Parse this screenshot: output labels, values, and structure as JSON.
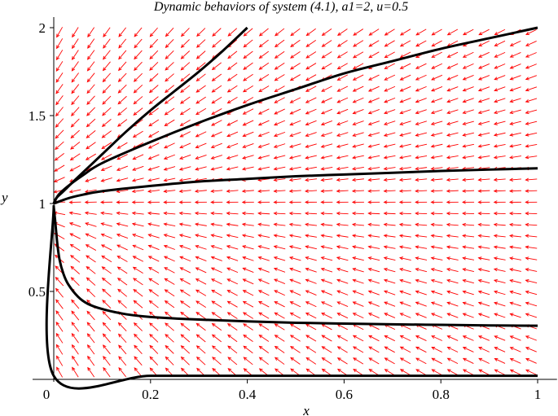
{
  "chart_data": {
    "type": "line",
    "title": "Dynamic behaviors of system (4.1), a1=2, u=0.5",
    "xlabel": "x",
    "ylabel": "y",
    "xlim": [
      0,
      1.04
    ],
    "ylim": [
      0,
      2.06
    ],
    "x_ticks": [
      {
        "value": 0.2,
        "label": "0.2"
      },
      {
        "value": 0.4,
        "label": "0.4"
      },
      {
        "value": 0.6,
        "label": "0.6"
      },
      {
        "value": 0.8,
        "label": "0.8"
      },
      {
        "value": 1,
        "label": "1"
      }
    ],
    "y_ticks": [
      {
        "value": 0.5,
        "label": "0.5"
      },
      {
        "value": 1,
        "label": "1"
      },
      {
        "value": 1.5,
        "label": "1.5"
      },
      {
        "value": 2,
        "label": "2"
      }
    ],
    "origin_label": "0",
    "grid": false,
    "colors": {
      "trajectory": "#000000",
      "field_arrows": "#ff0000"
    },
    "direction_field": {
      "x_start": 0.012,
      "x_step": 0.0325,
      "x_count": 31,
      "y_start": 0.04,
      "y_step": 0.0645,
      "y_count": 31
    },
    "series": [
      {
        "x": [
          0,
          0.005,
          0.02,
          0.05,
          0.1,
          0.15,
          0.2,
          0.25,
          0.3,
          0.35,
          0.4
        ],
        "y": [
          1.0,
          1.03,
          1.07,
          1.15,
          1.28,
          1.41,
          1.53,
          1.64,
          1.75,
          1.87,
          2.0
        ]
      },
      {
        "x": [
          0,
          0.01,
          0.03,
          0.06,
          0.1,
          0.2,
          0.3,
          0.4,
          0.5,
          0.6,
          0.7,
          0.8,
          0.9,
          1.0
        ],
        "y": [
          1.0,
          1.05,
          1.1,
          1.16,
          1.23,
          1.35,
          1.46,
          1.56,
          1.65,
          1.74,
          1.81,
          1.88,
          1.94,
          2.0
        ]
      },
      {
        "x": [
          0,
          0.03,
          0.06,
          0.1,
          0.2,
          0.3,
          0.4,
          0.5,
          0.6,
          0.7,
          0.8,
          0.9,
          1.0
        ],
        "y": [
          1.0,
          1.03,
          1.05,
          1.07,
          1.1,
          1.125,
          1.14,
          1.155,
          1.165,
          1.175,
          1.185,
          1.193,
          1.2
        ]
      },
      {
        "x": [
          0,
          0.003,
          0.007,
          0.012,
          0.02,
          0.03,
          0.05,
          0.07,
          0.1,
          0.15,
          0.2,
          0.3,
          0.4,
          0.5,
          0.6,
          0.7,
          0.8,
          0.9,
          1.0
        ],
        "y": [
          0.98,
          0.9,
          0.78,
          0.68,
          0.6,
          0.54,
          0.47,
          0.43,
          0.4,
          0.37,
          0.355,
          0.34,
          0.33,
          0.322,
          0.317,
          0.313,
          0.31,
          0.307,
          0.305
        ]
      },
      {
        "x": [
          0,
          0,
          0.2,
          0.4,
          0.6,
          0.8,
          1.0
        ],
        "y": [
          0.99,
          0.02,
          0.02,
          0.02,
          0.02,
          0.02,
          0.02
        ]
      }
    ]
  }
}
